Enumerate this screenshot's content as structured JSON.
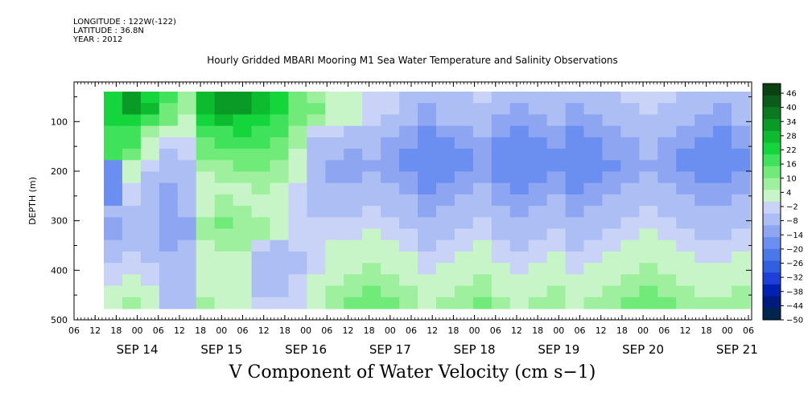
{
  "header": {
    "longitude": "LONGITUDE : 122W(-122)",
    "latitude": "LATITUDE : 36.8N",
    "year": "YEAR : 2012",
    "title": "Hourly Gridded MBARI Mooring M1 Sea Water Temperature and Salinity Observations"
  },
  "chart_data": {
    "type": "heatmap",
    "title": "Hourly Gridded MBARI Mooring M1 Sea Water Temperature and Salinity Observations",
    "xlabel": "V Component of Water Velocity (cm s−1)",
    "ylabel": "DEPTH (m)",
    "y_ticks": [
      100,
      200,
      300,
      400,
      500
    ],
    "ylim": [
      500,
      20
    ],
    "x_hour_ticks": [
      "06",
      "12",
      "18",
      "00",
      "06",
      "12",
      "18",
      "00",
      "06",
      "12",
      "18",
      "00",
      "06",
      "12",
      "18",
      "00",
      "06",
      "12",
      "18",
      "00",
      "06",
      "12",
      "18",
      "00",
      "06",
      "12",
      "18",
      "00",
      "06",
      "12",
      "18",
      "00",
      "06"
    ],
    "x_day_labels": [
      "SEP 14",
      "SEP 15",
      "SEP 16",
      "SEP 17",
      "SEP 18",
      "SEP 19",
      "SEP 20",
      "SEP 21"
    ],
    "colorbar_labels": [
      "46",
      "40",
      "34",
      "28",
      "22",
      "16",
      "10",
      "4",
      "−2",
      "−8",
      "−14",
      "−20",
      "−26",
      "−32",
      "−38",
      "−44",
      "−50"
    ],
    "colorbar_range": [
      -50,
      50
    ],
    "colorbar_colors": [
      "#00264d",
      "#001a80",
      "#0022b3",
      "#1e40d9",
      "#3060e0",
      "#4a78e8",
      "#6a8ff0",
      "#8ea6f2",
      "#adbef5",
      "#c8d3f7",
      "#c8f5c8",
      "#9ef09e",
      "#70eb7a",
      "#3fe25a",
      "#14d63c",
      "#0dbb2e",
      "#0a9a26",
      "#0a7a20",
      "#0b5c18",
      "#0a4212"
    ],
    "rows_depth": [
      20,
      45,
      70,
      95,
      120,
      145,
      170,
      195,
      220,
      245,
      270,
      295,
      320,
      345,
      370,
      395,
      420,
      445,
      470
    ],
    "row_values": [
      [
        22,
        30,
        24,
        16,
        8,
        28,
        34,
        30,
        26,
        22,
        12,
        6,
        4,
        2,
        -2,
        -4,
        -6,
        -10,
        -8,
        -6,
        -4,
        -8,
        -10,
        -8,
        -6,
        -10,
        -8,
        -6,
        -4,
        -2,
        -4,
        -6,
        -8,
        -10,
        -6
      ],
      [
        22,
        30,
        26,
        14,
        6,
        28,
        32,
        30,
        28,
        22,
        14,
        10,
        4,
        2,
        -2,
        -4,
        -6,
        -12,
        -10,
        -8,
        -6,
        -10,
        -12,
        -8,
        -10,
        -12,
        -10,
        -8,
        -6,
        -4,
        -6,
        -8,
        -10,
        -12,
        -8
      ],
      [
        22,
        24,
        18,
        10,
        4,
        22,
        26,
        24,
        22,
        18,
        10,
        6,
        2,
        0,
        -4,
        -6,
        -8,
        -12,
        -10,
        -10,
        -8,
        -12,
        -14,
        -12,
        -10,
        -14,
        -12,
        -10,
        -8,
        -6,
        -8,
        -10,
        -12,
        -14,
        -10
      ],
      [
        18,
        18,
        8,
        4,
        2,
        16,
        18,
        20,
        18,
        16,
        8,
        -2,
        -4,
        -6,
        -8,
        -10,
        -12,
        -16,
        -14,
        -12,
        -10,
        -14,
        -16,
        -14,
        -12,
        -16,
        -14,
        -12,
        -10,
        -8,
        -10,
        -12,
        -14,
        -16,
        -12
      ],
      [
        18,
        16,
        4,
        -4,
        -2,
        14,
        16,
        18,
        16,
        14,
        6,
        -6,
        -8,
        -10,
        -10,
        -12,
        -14,
        -18,
        -16,
        -14,
        -12,
        -16,
        -18,
        -16,
        -14,
        -18,
        -16,
        -14,
        -12,
        -10,
        -12,
        -14,
        -16,
        -18,
        -14
      ],
      [
        18,
        14,
        2,
        -6,
        -4,
        10,
        12,
        14,
        14,
        12,
        4,
        -8,
        -10,
        -12,
        -10,
        -14,
        -16,
        -18,
        -16,
        -16,
        -14,
        -18,
        -20,
        -18,
        -16,
        -18,
        -16,
        -14,
        -12,
        -10,
        -14,
        -16,
        -18,
        -20,
        -16
      ],
      [
        -18,
        2,
        -4,
        -8,
        -6,
        6,
        8,
        10,
        10,
        8,
        2,
        -10,
        -12,
        -14,
        -12,
        -14,
        -16,
        -20,
        -18,
        -16,
        -14,
        -18,
        -20,
        -18,
        -16,
        -20,
        -18,
        -16,
        -14,
        -12,
        -14,
        -16,
        -18,
        -18,
        -16
      ],
      [
        -20,
        0,
        -6,
        -10,
        -8,
        4,
        6,
        6,
        8,
        6,
        0,
        -10,
        -12,
        -12,
        -10,
        -12,
        -14,
        -18,
        -16,
        -14,
        -12,
        -16,
        -18,
        -16,
        -14,
        -18,
        -16,
        -14,
        -12,
        -10,
        -12,
        -14,
        -16,
        -16,
        -14
      ],
      [
        -20,
        -2,
        -8,
        -12,
        -10,
        2,
        4,
        4,
        6,
        4,
        -2,
        -8,
        -10,
        -10,
        -8,
        -10,
        -12,
        -16,
        -14,
        -12,
        -10,
        -14,
        -16,
        -14,
        -12,
        -16,
        -14,
        -12,
        -10,
        -8,
        -10,
        -12,
        -14,
        -14,
        -12
      ],
      [
        -16,
        -4,
        -8,
        -12,
        -10,
        2,
        6,
        4,
        4,
        2,
        -4,
        -6,
        -8,
        -8,
        -6,
        -8,
        -10,
        -14,
        -12,
        -10,
        -8,
        -12,
        -14,
        -12,
        -10,
        -14,
        -12,
        -10,
        -8,
        -6,
        -8,
        -10,
        -12,
        -12,
        -10
      ],
      [
        -8,
        -6,
        -8,
        -12,
        -10,
        4,
        8,
        6,
        4,
        2,
        -4,
        -6,
        -6,
        -6,
        -4,
        -6,
        -8,
        -12,
        -10,
        -8,
        -6,
        -10,
        -12,
        -10,
        -8,
        -12,
        -10,
        -8,
        -6,
        -4,
        -6,
        -8,
        -10,
        -10,
        -8
      ],
      [
        -14,
        -8,
        -10,
        -14,
        -12,
        6,
        10,
        8,
        6,
        4,
        -2,
        -4,
        -4,
        -4,
        -2,
        -4,
        -6,
        -10,
        -8,
        -6,
        -4,
        -8,
        -10,
        -8,
        -6,
        -10,
        -8,
        -6,
        -4,
        -2,
        -4,
        -6,
        -8,
        -8,
        -6
      ],
      [
        -12,
        -8,
        -10,
        -14,
        -12,
        6,
        8,
        8,
        6,
        4,
        -2,
        -2,
        -2,
        -2,
        0,
        -2,
        -4,
        -8,
        -6,
        -4,
        -2,
        -6,
        -8,
        -6,
        -4,
        -8,
        -6,
        -4,
        -2,
        0,
        -2,
        -4,
        -6,
        -6,
        -4
      ],
      [
        -10,
        -6,
        -8,
        -12,
        -10,
        4,
        6,
        6,
        -4,
        -8,
        -4,
        -2,
        0,
        0,
        2,
        0,
        -2,
        -6,
        -4,
        -2,
        0,
        -4,
        -6,
        -4,
        -2,
        -6,
        -4,
        -2,
        0,
        2,
        0,
        -2,
        -4,
        -4,
        -2
      ],
      [
        -8,
        -4,
        -6,
        -10,
        -8,
        4,
        4,
        4,
        -6,
        -10,
        -6,
        -2,
        0,
        2,
        4,
        2,
        0,
        -4,
        -2,
        0,
        2,
        -2,
        -4,
        -2,
        0,
        -4,
        -2,
        0,
        2,
        4,
        2,
        0,
        -2,
        -2,
        0
      ],
      [
        -4,
        -2,
        -4,
        -8,
        -6,
        2,
        2,
        2,
        -6,
        -8,
        -6,
        -2,
        2,
        4,
        6,
        4,
        2,
        -2,
        0,
        2,
        4,
        0,
        -2,
        0,
        2,
        -2,
        0,
        2,
        4,
        6,
        4,
        2,
        0,
        0,
        2
      ],
      [
        -2,
        2,
        -2,
        -6,
        -8,
        2,
        0,
        0,
        -6,
        -6,
        -4,
        0,
        4,
        6,
        8,
        6,
        4,
        0,
        2,
        4,
        6,
        2,
        0,
        2,
        4,
        0,
        2,
        4,
        6,
        8,
        6,
        4,
        2,
        2,
        4
      ],
      [
        0,
        4,
        0,
        -8,
        -10,
        4,
        2,
        0,
        -6,
        -6,
        -4,
        2,
        6,
        8,
        10,
        8,
        6,
        2,
        4,
        6,
        8,
        4,
        2,
        4,
        6,
        2,
        4,
        6,
        8,
        10,
        8,
        6,
        4,
        4,
        6
      ],
      [
        2,
        6,
        2,
        -6,
        -8,
        6,
        4,
        2,
        -4,
        -4,
        -2,
        4,
        8,
        10,
        12,
        10,
        8,
        4,
        6,
        8,
        10,
        6,
        4,
        6,
        8,
        4,
        6,
        8,
        10,
        12,
        10,
        8,
        6,
        6,
        8
      ]
    ]
  }
}
